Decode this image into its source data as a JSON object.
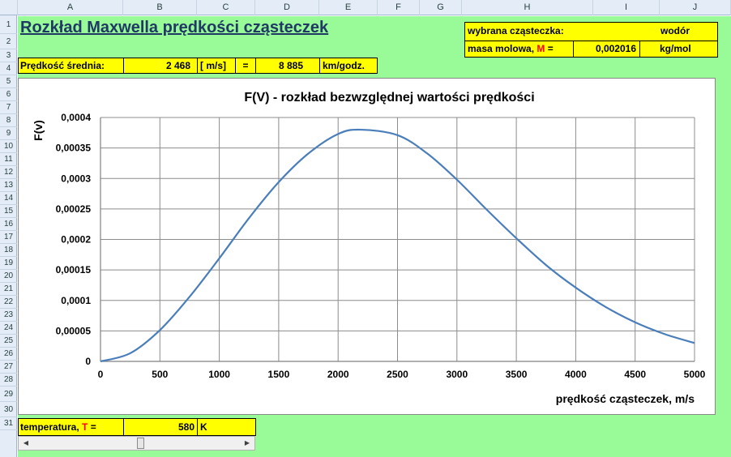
{
  "columns": [
    "A",
    "B",
    "C",
    "D",
    "E",
    "F",
    "G",
    "H",
    "I",
    "J"
  ],
  "rows": [
    "1",
    "2",
    "3",
    "4",
    "5",
    "6",
    "7",
    "8",
    "9",
    "10",
    "11",
    "12",
    "13",
    "14",
    "15",
    "16",
    "17",
    "18",
    "19",
    "20",
    "21",
    "22",
    "23",
    "24",
    "25",
    "26",
    "27",
    "28",
    "29",
    "30",
    "31"
  ],
  "sheet": {
    "title": "Rozkład Maxwella prędkości cząsteczek",
    "mean_speed": {
      "label": "Prędkość średnia:",
      "value_ms": "2 468",
      "unit_ms": "[ m/s]",
      "equals": "=",
      "value_kmh": "8 885",
      "unit_kmh": "km/godz."
    },
    "particle": {
      "label": "wybrana cząsteczka:",
      "value": "wodór"
    },
    "molar_mass": {
      "label_prefix": "masa molowa, ",
      "label_symbol": "M",
      "label_suffix": " =",
      "value": "0,002016",
      "unit": "kg/mol"
    },
    "temperature": {
      "label_prefix": "temperatura, ",
      "label_symbol": "T",
      "label_suffix": " =",
      "value": "580",
      "unit": "K",
      "slider_fraction": 0.52
    },
    "scroll_left": "◀",
    "scroll_right": "▶"
  },
  "colors": {
    "cell_fill": "#ffff00",
    "sheet_background": "#98fb98",
    "series": "#4a7ebb",
    "title": "#1f3864",
    "symbol": "#ff0000"
  },
  "chart_data": {
    "type": "line",
    "title": "F(V) - rozkład  bezwzględnej  wartości  prędkości",
    "xlabel": "prędkość cząsteczek, m/s",
    "ylabel": "F(v)",
    "xlim": [
      0,
      5000
    ],
    "ylim": [
      0,
      0.0004
    ],
    "xticks": [
      0,
      500,
      1000,
      1500,
      2000,
      2500,
      3000,
      3500,
      4000,
      4500,
      5000
    ],
    "yticks": [
      0,
      5e-05,
      0.0001,
      0.00015,
      0.0002,
      0.00025,
      0.0003,
      0.00035,
      0.0004
    ],
    "xtick_labels": [
      "0",
      "500",
      "1000",
      "1500",
      "2000",
      "2500",
      "3000",
      "3500",
      "4000",
      "4500",
      "5000"
    ],
    "ytick_labels": [
      "0",
      "0,00005",
      "0,0001",
      "0,00015",
      "0,0002",
      "0,00025",
      "0,0003",
      "0,00035",
      "0,0004"
    ],
    "grid": true,
    "legend": "none",
    "series": [
      {
        "x": [
          0,
          250,
          500,
          750,
          1000,
          1250,
          1500,
          1750,
          2000,
          2190,
          2500,
          2750,
          3000,
          3250,
          3500,
          3750,
          4000,
          4250,
          4500,
          4750,
          5000
        ],
        "y": [
          0,
          1.34e-05,
          5.13e-05,
          0.000106,
          0.000169,
          0.000235,
          0.000294,
          0.000341,
          0.000373,
          0.00038,
          0.000371,
          0.000341,
          0.000298,
          0.000249,
          0.000202,
          0.000158,
          0.000121,
          8.95e-05,
          6.41e-05,
          4.47e-05,
          3.02e-05
        ]
      }
    ]
  }
}
